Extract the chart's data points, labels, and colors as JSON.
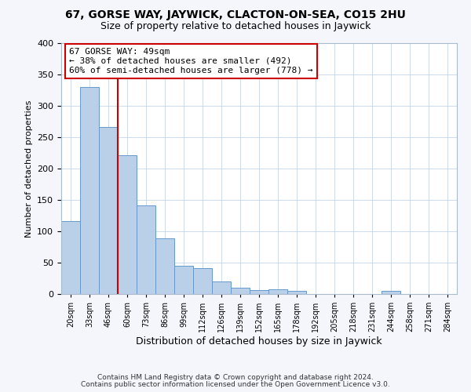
{
  "title": "67, GORSE WAY, JAYWICK, CLACTON-ON-SEA, CO15 2HU",
  "subtitle": "Size of property relative to detached houses in Jaywick",
  "xlabel": "Distribution of detached houses by size in Jaywick",
  "ylabel": "Number of detached properties",
  "categories": [
    "20sqm",
    "33sqm",
    "46sqm",
    "60sqm",
    "73sqm",
    "86sqm",
    "99sqm",
    "112sqm",
    "126sqm",
    "139sqm",
    "152sqm",
    "165sqm",
    "178sqm",
    "192sqm",
    "205sqm",
    "218sqm",
    "231sqm",
    "244sqm",
    "258sqm",
    "271sqm",
    "284sqm"
  ],
  "bar_heights": [
    116,
    330,
    266,
    221,
    141,
    89,
    45,
    41,
    20,
    10,
    6,
    8,
    5,
    0,
    0,
    0,
    0,
    5,
    0,
    0,
    0
  ],
  "bar_color": "#bad0e8",
  "bar_edgecolor": "#6699cc",
  "vline_color": "#cc0000",
  "ylim": [
    0,
    400
  ],
  "yticks": [
    0,
    50,
    100,
    150,
    200,
    250,
    300,
    350,
    400
  ],
  "annotation_title": "67 GORSE WAY: 49sqm",
  "annotation_line1": "← 38% of detached houses are smaller (492)",
  "annotation_line2": "60% of semi-detached houses are larger (778) →",
  "annotation_box_facecolor": "#ffffff",
  "annotation_box_edgecolor": "#cc0000",
  "footer1": "Contains HM Land Registry data © Crown copyright and database right 2024.",
  "footer2": "Contains public sector information licensed under the Open Government Licence v3.0.",
  "fig_bg_color": "#f4f6fc",
  "plot_bg_color": "#ffffff",
  "grid_color": "#c8d4e8",
  "spine_color": "#aabbcc"
}
